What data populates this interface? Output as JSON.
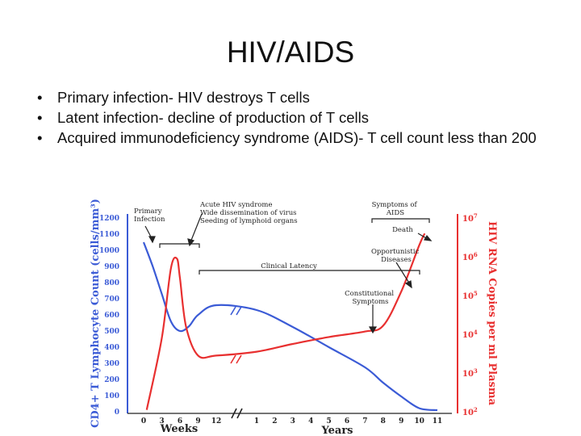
{
  "slide": {
    "title": "HIV/AIDS",
    "bullets": [
      "Primary infection- HIV destroys T cells",
      "Latent infection- decline of production of T cells",
      "Acquired immunodeficiency syndrome (AIDS)- T cell count less than 200"
    ]
  },
  "chart_data": {
    "type": "line",
    "title": "",
    "ylabel": "CD4+ T Lymphocyte Count (cells/mm³)",
    "y2label": "HIV RNA Copies per ml Plasma",
    "xlabel_weeks": "Weeks",
    "xlabel_years": "Years",
    "ylim": [
      0,
      1200
    ],
    "y_ticks": [
      "0",
      "100",
      "200",
      "300",
      "400",
      "500",
      "600",
      "700",
      "800",
      "900",
      "1000",
      "1100",
      "1200"
    ],
    "y2_ticks": [
      {
        "value": 2,
        "base": "10",
        "exp": "2"
      },
      {
        "value": 3,
        "base": "10",
        "exp": "3"
      },
      {
        "value": 4,
        "base": "10",
        "exp": "4"
      },
      {
        "value": 5,
        "base": "10",
        "exp": "5"
      },
      {
        "value": 6,
        "base": "10",
        "exp": "6"
      },
      {
        "value": 7,
        "base": "10",
        "exp": "7"
      }
    ],
    "weeks_ticks": [
      "0",
      "3",
      "6",
      "9",
      "12"
    ],
    "years_ticks": [
      "1",
      "2",
      "3",
      "4",
      "5",
      "6",
      "7",
      "8",
      "9",
      "10",
      "11"
    ],
    "colors": {
      "cd4": "#3b5bd6",
      "rna": "#e83030",
      "text": "#222222"
    },
    "series": [
      {
        "key": "cd4",
        "points": [
          {
            "u": "w",
            "x": 0,
            "y": 1050
          },
          {
            "u": "w",
            "x": 1.5,
            "y": 900
          },
          {
            "u": "w",
            "x": 3,
            "y": 730
          },
          {
            "u": "w",
            "x": 4.5,
            "y": 560
          },
          {
            "u": "w",
            "x": 6,
            "y": 500
          },
          {
            "u": "w",
            "x": 7.5,
            "y": 530
          },
          {
            "u": "w",
            "x": 9,
            "y": 600
          },
          {
            "u": "w",
            "x": 12,
            "y": 660
          },
          {
            "u": "y",
            "x": 1,
            "y": 630
          },
          {
            "u": "y",
            "x": 3,
            "y": 525
          },
          {
            "u": "y",
            "x": 5,
            "y": 400
          },
          {
            "u": "y",
            "x": 7,
            "y": 275
          },
          {
            "u": "y",
            "x": 8,
            "y": 180
          },
          {
            "u": "y",
            "x": 9,
            "y": 95
          },
          {
            "u": "y",
            "x": 10,
            "y": 22
          },
          {
            "u": "y",
            "x": 11,
            "y": 10
          }
        ]
      },
      {
        "key": "rna",
        "points": [
          {
            "u": "w",
            "x": 0.5,
            "y": 2.05
          },
          {
            "u": "w",
            "x": 3,
            "y": 3.9
          },
          {
            "u": "w",
            "x": 4.5,
            "y": 5.7
          },
          {
            "u": "w",
            "x": 5.5,
            "y": 5.95
          },
          {
            "u": "w",
            "x": 6,
            "y": 5.45
          },
          {
            "u": "w",
            "x": 7,
            "y": 4.2
          },
          {
            "u": "w",
            "x": 9,
            "y": 3.45
          },
          {
            "u": "w",
            "x": 12,
            "y": 3.45
          },
          {
            "u": "y",
            "x": 1,
            "y": 3.55
          },
          {
            "u": "y",
            "x": 3,
            "y": 3.75
          },
          {
            "u": "y",
            "x": 5,
            "y": 3.93
          },
          {
            "u": "y",
            "x": 7,
            "y": 4.07
          },
          {
            "u": "y",
            "x": 8,
            "y": 4.22
          },
          {
            "u": "y",
            "x": 9,
            "y": 5.1
          },
          {
            "u": "y",
            "x": 10,
            "y": 6.3
          },
          {
            "u": "y",
            "x": 10.3,
            "y": 6.6
          }
        ]
      }
    ],
    "annotations": {
      "primary": "Primary\nInfection",
      "acute": "Acute HIV syndrome\nWide dissemination of virus\nSeeding of lymphoid organs",
      "symptoms_aids": "Symptoms of\nAIDS",
      "death": "Death",
      "clinical_latency": "Clinical Latency",
      "opportunistic": "Opportunistic\nDiseases",
      "constitutional": "Constitutional\nSymptoms"
    }
  }
}
